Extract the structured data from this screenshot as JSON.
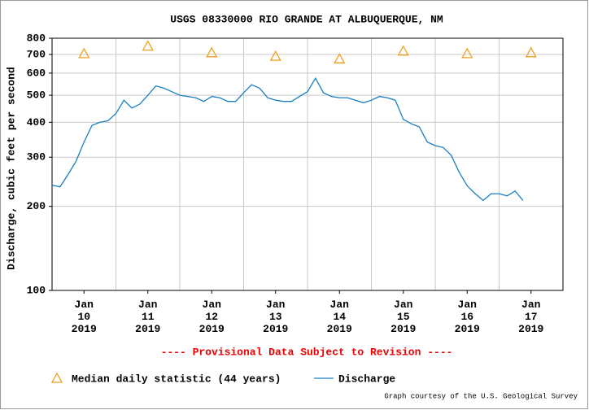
{
  "chart_data": {
    "type": "line",
    "title": "USGS 08330000 RIO GRANDE AT ALBUQUERQUE, NM",
    "y_label": "Discharge, cubic feet per second",
    "annotation": "---- Provisional Data Subject to Revision ----",
    "footer": "Graph courtesy of the U.S. Geological Survey",
    "log_y": true,
    "grid": true,
    "ylim": [
      100,
      800
    ],
    "yticks": [
      100,
      200,
      300,
      400,
      500,
      600,
      700,
      800
    ],
    "xlim": [
      10,
      18
    ],
    "xticks": [
      {
        "value": 10.5,
        "label": "Jan\n10\n2019"
      },
      {
        "value": 11.5,
        "label": "Jan\n11\n2019"
      },
      {
        "value": 12.5,
        "label": "Jan\n12\n2019"
      },
      {
        "value": 13.5,
        "label": "Jan\n13\n2019"
      },
      {
        "value": 14.5,
        "label": "Jan\n14\n2019"
      },
      {
        "value": 15.5,
        "label": "Jan\n15\n2019"
      },
      {
        "value": 16.5,
        "label": "Jan\n16\n2019"
      },
      {
        "value": 17.5,
        "label": "Jan\n17\n2019"
      }
    ],
    "xgrid": [
      11,
      12,
      13,
      14,
      15,
      16,
      17
    ],
    "series": [
      {
        "name": "Median daily statistic (44 years)",
        "color": "#f0a020",
        "style": "marker",
        "x": [
          10.5,
          11.5,
          12.5,
          13.5,
          14.5,
          15.5,
          16.5,
          17.5
        ],
        "values": [
          705,
          750,
          710,
          690,
          675,
          720,
          705,
          710
        ]
      },
      {
        "name": "Discharge",
        "color": "#1a7fc1",
        "style": "line",
        "x": [
          10.0,
          10.125,
          10.25,
          10.375,
          10.5,
          10.625,
          10.75,
          10.875,
          11.0,
          11.125,
          11.25,
          11.375,
          11.5,
          11.625,
          11.75,
          11.875,
          12.0,
          12.125,
          12.25,
          12.375,
          12.5,
          12.625,
          12.75,
          12.875,
          13.0,
          13.125,
          13.25,
          13.375,
          13.5,
          13.625,
          13.75,
          13.875,
          14.0,
          14.125,
          14.25,
          14.375,
          14.5,
          14.625,
          14.75,
          14.875,
          15.0,
          15.125,
          15.25,
          15.375,
          15.5,
          15.625,
          15.75,
          15.875,
          16.0,
          16.125,
          16.25,
          16.375,
          16.5,
          16.625,
          16.75,
          16.875,
          17.0,
          17.125,
          17.25,
          17.375
        ],
        "values": [
          238,
          235,
          260,
          290,
          340,
          390,
          400,
          405,
          430,
          480,
          450,
          465,
          500,
          540,
          530,
          515,
          500,
          495,
          490,
          475,
          495,
          490,
          475,
          475,
          510,
          545,
          530,
          490,
          480,
          475,
          475,
          495,
          515,
          575,
          510,
          495,
          490,
          490,
          480,
          470,
          480,
          495,
          490,
          480,
          410,
          395,
          385,
          340,
          330,
          325,
          305,
          265,
          237,
          222,
          210,
          222,
          222,
          218,
          227,
          210
        ]
      }
    ]
  }
}
